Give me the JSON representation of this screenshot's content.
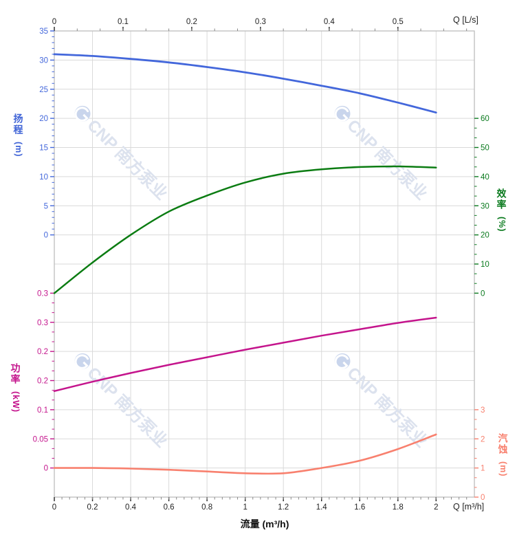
{
  "watermark": {
    "text": "CNP 南方泵业",
    "color": "#dce2ee",
    "logo_color": "#c9d5ec"
  },
  "labels": {
    "head": {
      "cn": "扬程",
      "unit": "(m)"
    },
    "eff": {
      "cn": "效率",
      "unit": "(%)"
    },
    "power": {
      "cn": "功率",
      "unit": "(kW)"
    },
    "npsh": {
      "cn": "汽蚀",
      "unit": "(m)"
    },
    "flow": "流量 (m³/h)",
    "q_top": "Q [L/s]",
    "q_bottom": "Q [m³/h]"
  },
  "colors": {
    "head": "#4367db",
    "eff": "#0b7c12",
    "power": "#c4148c",
    "npsh": "#f8806e",
    "grid": "#d9d9d9",
    "border": "#bdbdbd",
    "axis_text_dark": "#222222",
    "minor_tick_dark": "#888888"
  },
  "chart_data": {
    "type": "line",
    "title": "",
    "grid": true,
    "legend": "none",
    "x_bottom": {
      "label": "Q [m³/h]",
      "axis_caption": "流量 (m³/h)",
      "min": 0,
      "max": 2.2,
      "data_max": 2,
      "major_ticks": [
        0,
        0.2,
        0.4,
        0.6,
        0.8,
        1,
        1.2,
        1.4,
        1.6,
        1.8,
        2
      ],
      "tick_labels": [
        "0",
        "0.2",
        "0.4",
        "0.6",
        "0.8",
        "1",
        "1.2",
        "1.4",
        "1.6",
        "1.8",
        "2"
      ],
      "minor_step": 0.04
    },
    "x_top": {
      "label": "Q [L/s]",
      "major_ticks": [
        0,
        0.1,
        0.2,
        0.3,
        0.4,
        0.5
      ],
      "tick_labels": [
        "0",
        "0.1",
        "0.2",
        "0.3",
        "0.4",
        "0.5"
      ],
      "minor_step": 0.03333,
      "m3h_per_unit": 3.6
    },
    "y_axes": [
      {
        "id": "head",
        "name": "扬程 (m)",
        "side": "left",
        "color": "#4367db",
        "min": 0,
        "max": 35,
        "major_values": [
          35,
          30,
          25,
          20,
          15,
          10,
          5,
          0
        ],
        "tick_labels": [
          "35",
          "30",
          "25",
          "20",
          "15",
          "10",
          "5",
          "0"
        ],
        "minor_divisions": 5
      },
      {
        "id": "eff",
        "name": "效率 (%)",
        "side": "right",
        "color": "#0a7a1e",
        "min": 0,
        "max": 60,
        "major_values": [
          60,
          50,
          40,
          30,
          20,
          10,
          0
        ],
        "tick_labels": [
          "60",
          "50",
          "40",
          "30",
          "20",
          "10",
          "0"
        ],
        "minor_divisions": 3
      },
      {
        "id": "power",
        "name": "功率 (kW)",
        "side": "left",
        "color": "#c4148c",
        "min": 0,
        "max": 0.3,
        "major_values": [
          0.3,
          0.25,
          0.2,
          0.15,
          0.1,
          0.05,
          0
        ],
        "tick_labels": [
          "0.3",
          "0.3",
          "0.2",
          "0.2",
          "0.1",
          "0.05",
          "0"
        ],
        "minor_divisions": 3
      },
      {
        "id": "npsh",
        "name": "汽蚀 (m)",
        "side": "right",
        "color": "#f8806e",
        "min": 0,
        "max": 3,
        "major_values": [
          3,
          2,
          1,
          0
        ],
        "tick_labels": [
          "3",
          "2",
          "1",
          "0"
        ],
        "minor_divisions": 3
      }
    ],
    "series": [
      {
        "id": "head",
        "label": "扬程",
        "axis": "head",
        "color": "#4367db",
        "width": 2.8,
        "x": [
          0,
          0.2,
          0.4,
          0.6,
          0.8,
          1.0,
          1.2,
          1.4,
          1.6,
          1.8,
          2.0
        ],
        "values": [
          31,
          30.7,
          30.2,
          29.6,
          28.8,
          27.9,
          26.8,
          25.6,
          24.3,
          22.7,
          21
        ]
      },
      {
        "id": "efficiency",
        "label": "效率",
        "axis": "eff",
        "color": "#0b7c12",
        "width": 2.5,
        "x": [
          0,
          0.2,
          0.4,
          0.6,
          0.8,
          1.0,
          1.2,
          1.4,
          1.6,
          1.8,
          2.0
        ],
        "values": [
          0,
          10.5,
          20,
          28,
          33.5,
          38,
          41,
          42.5,
          43.3,
          43.5,
          43.1
        ]
      },
      {
        "id": "power",
        "label": "功率",
        "axis": "power",
        "color": "#c4148c",
        "width": 2.5,
        "x": [
          0,
          0.2,
          0.4,
          0.6,
          0.8,
          1.0,
          1.2,
          1.4,
          1.6,
          1.8,
          2.0
        ],
        "values": [
          0.132,
          0.148,
          0.163,
          0.177,
          0.19,
          0.203,
          0.215,
          0.227,
          0.238,
          0.249,
          0.258
        ]
      },
      {
        "id": "npsh",
        "label": "汽蚀",
        "axis": "npsh",
        "color": "#f8806e",
        "width": 2.6,
        "x": [
          0,
          0.2,
          0.4,
          0.6,
          0.8,
          1.0,
          1.2,
          1.4,
          1.6,
          1.8,
          2.0
        ],
        "values": [
          1.0,
          1.0,
          0.98,
          0.94,
          0.88,
          0.82,
          0.82,
          1.0,
          1.25,
          1.65,
          2.15
        ]
      }
    ]
  }
}
